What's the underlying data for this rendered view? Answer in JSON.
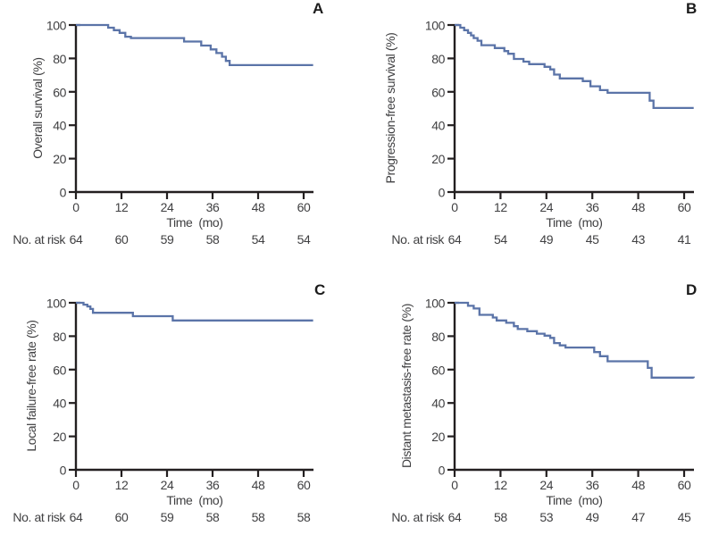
{
  "figure": {
    "background": "#ffffff",
    "curve_color": "#5b74a8",
    "axis_color": "#231f20",
    "text_color": "#404042"
  },
  "chart_data": [
    {
      "type": "line",
      "step": true,
      "title": "A",
      "ylabel": "Overall survival (%)",
      "xlabel": "Time  (mo)",
      "xlim": [
        0,
        63
      ],
      "ylim": [
        0,
        100
      ],
      "x_ticks": [
        0,
        12,
        24,
        36,
        48,
        60
      ],
      "y_ticks": [
        0,
        20,
        40,
        60,
        80,
        100
      ],
      "grid": false,
      "legend": "none",
      "no_at_risk": {
        "label": "No. at risk",
        "times": [
          0,
          12,
          24,
          36,
          48,
          60
        ],
        "counts": [
          64,
          60,
          59,
          58,
          54,
          54
        ]
      },
      "points": [
        [
          0,
          100
        ],
        [
          8.5,
          98.4
        ],
        [
          10,
          96.9
        ],
        [
          11.5,
          95.3
        ],
        [
          13,
          93
        ],
        [
          14.5,
          92.2
        ],
        [
          28.5,
          90.1
        ],
        [
          33,
          87.7
        ],
        [
          35.5,
          85.4
        ],
        [
          37,
          83.2
        ],
        [
          38.5,
          81
        ],
        [
          39.5,
          78.5
        ],
        [
          40.5,
          76
        ],
        [
          62.5,
          76
        ]
      ]
    },
    {
      "type": "line",
      "step": true,
      "title": "B",
      "ylabel": "Progression-free survival (%)",
      "xlabel": "Time  (mo)",
      "xlim": [
        0,
        63
      ],
      "ylim": [
        0,
        100
      ],
      "x_ticks": [
        0,
        12,
        24,
        36,
        48,
        60
      ],
      "y_ticks": [
        0,
        20,
        40,
        60,
        80,
        100
      ],
      "grid": false,
      "legend": "none",
      "no_at_risk": {
        "label": "No. at risk",
        "times": [
          0,
          12,
          24,
          36,
          48,
          60
        ],
        "counts": [
          64,
          54,
          49,
          45,
          43,
          41
        ]
      },
      "points": [
        [
          0,
          100
        ],
        [
          1.5,
          98.4
        ],
        [
          2.5,
          96.9
        ],
        [
          3.5,
          95.3
        ],
        [
          4.3,
          93.8
        ],
        [
          5,
          92.2
        ],
        [
          6,
          90.6
        ],
        [
          7,
          87.9
        ],
        [
          10.5,
          86.2
        ],
        [
          13,
          84.4
        ],
        [
          14,
          82.8
        ],
        [
          15.5,
          79.7
        ],
        [
          18,
          78.1
        ],
        [
          19.5,
          76.6
        ],
        [
          23.5,
          75
        ],
        [
          25,
          73.4
        ],
        [
          26,
          70.3
        ],
        [
          27.5,
          68
        ],
        [
          33.5,
          66.4
        ],
        [
          35.5,
          63.3
        ],
        [
          38,
          61
        ],
        [
          40,
          59.4
        ],
        [
          51,
          54.7
        ],
        [
          52,
          50.3
        ],
        [
          62.5,
          50.3
        ]
      ]
    },
    {
      "type": "line",
      "step": true,
      "title": "C",
      "ylabel": "Local failure-free rate (%)",
      "xlabel": "Time  (mo)",
      "xlim": [
        0,
        63
      ],
      "ylim": [
        0,
        100
      ],
      "x_ticks": [
        0,
        12,
        24,
        36,
        48,
        60
      ],
      "y_ticks": [
        0,
        20,
        40,
        60,
        80,
        100
      ],
      "grid": false,
      "legend": "none",
      "no_at_risk": {
        "label": "No. at risk",
        "times": [
          0,
          12,
          24,
          36,
          48,
          60
        ],
        "counts": [
          64,
          60,
          59,
          58,
          58,
          58
        ]
      },
      "points": [
        [
          0,
          100
        ],
        [
          2,
          98.9
        ],
        [
          3,
          97.8
        ],
        [
          3.8,
          96.3
        ],
        [
          4.5,
          94
        ],
        [
          15,
          92
        ],
        [
          25.5,
          89.4
        ],
        [
          62.5,
          89.4
        ]
      ]
    },
    {
      "type": "line",
      "step": true,
      "title": "D",
      "ylabel": "Distant metastasis-free rate (%)",
      "xlabel": "Time  (mo)",
      "xlim": [
        0,
        63
      ],
      "ylim": [
        0,
        100
      ],
      "x_ticks": [
        0,
        12,
        24,
        36,
        48,
        60
      ],
      "y_ticks": [
        0,
        20,
        40,
        60,
        80,
        100
      ],
      "grid": false,
      "legend": "none",
      "no_at_risk": {
        "label": "No. at risk",
        "times": [
          0,
          12,
          24,
          36,
          48,
          60
        ],
        "counts": [
          64,
          58,
          53,
          49,
          47,
          45
        ]
      },
      "points": [
        [
          0,
          100
        ],
        [
          3.5,
          98.2
        ],
        [
          5,
          96.6
        ],
        [
          6.5,
          92.8
        ],
        [
          10,
          91.2
        ],
        [
          11,
          89.4
        ],
        [
          13.5,
          88
        ],
        [
          15.5,
          86
        ],
        [
          16.5,
          84.3
        ],
        [
          19,
          83
        ],
        [
          21.5,
          81.5
        ],
        [
          23.5,
          80.3
        ],
        [
          25,
          79
        ],
        [
          26,
          75.9
        ],
        [
          27.5,
          74.5
        ],
        [
          29,
          73.2
        ],
        [
          36.5,
          70.5
        ],
        [
          38,
          68
        ],
        [
          40,
          65
        ],
        [
          50.5,
          61
        ],
        [
          51.5,
          55.2
        ],
        [
          62.5,
          55
        ]
      ]
    }
  ]
}
